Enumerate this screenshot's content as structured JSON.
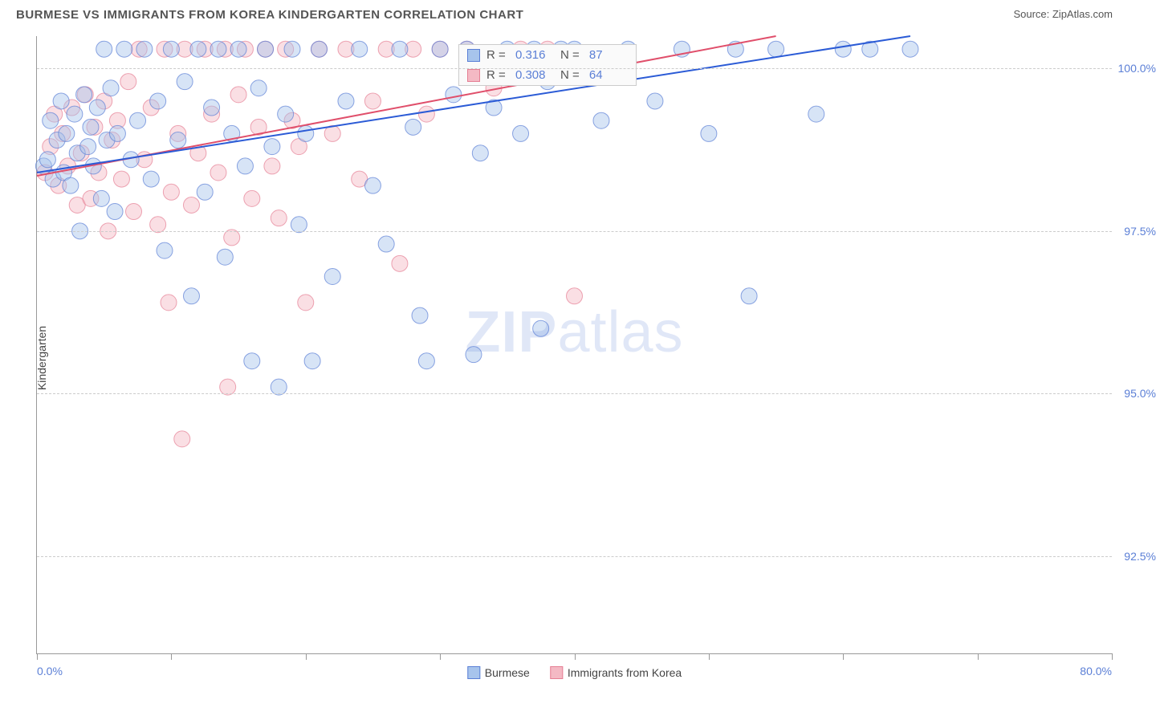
{
  "header": {
    "title": "BURMESE VS IMMIGRANTS FROM KOREA KINDERGARTEN CORRELATION CHART",
    "source": "Source: ZipAtlas.com"
  },
  "watermark": {
    "bold": "ZIP",
    "light": "atlas"
  },
  "axes": {
    "y_label": "Kindergarten",
    "x_min": 0.0,
    "x_max": 80.0,
    "y_min": 91.0,
    "y_max": 100.5,
    "y_ticks": [
      92.5,
      95.0,
      97.5,
      100.0
    ],
    "y_tick_labels": [
      "92.5%",
      "95.0%",
      "97.5%",
      "100.0%"
    ],
    "x_ticks": [
      0,
      10,
      20,
      30,
      40,
      50,
      60,
      70,
      80
    ],
    "x_left_label": "0.0%",
    "x_right_label": "80.0%"
  },
  "legend": {
    "series1": {
      "label": "Burmese",
      "fill": "#a7c4ec",
      "stroke": "#5b7fd6"
    },
    "series2": {
      "label": "Immigrants from Korea",
      "fill": "#f4b9c4",
      "stroke": "#e57f94"
    }
  },
  "stats": [
    {
      "swatch_fill": "#a7c4ec",
      "swatch_stroke": "#5b7fd6",
      "r": "0.316",
      "n": "87"
    },
    {
      "swatch_fill": "#f4b9c4",
      "swatch_stroke": "#e57f94",
      "r": "0.308",
      "n": "64"
    }
  ],
  "trend_lines": {
    "s1": {
      "x1": 0,
      "y1": 98.4,
      "x2": 65,
      "y2": 100.5,
      "color": "#2b5bd6",
      "width": 2
    },
    "s2": {
      "x1": 0,
      "y1": 98.35,
      "x2": 55,
      "y2": 100.5,
      "color": "#e04f6b",
      "width": 2
    }
  },
  "style": {
    "marker_radius": 10,
    "marker_opacity": 0.45,
    "grid_color": "#cccccc",
    "axis_color": "#999999",
    "tick_label_color": "#5b7fd6"
  },
  "series1_points": [
    [
      0.5,
      98.5
    ],
    [
      0.8,
      98.6
    ],
    [
      1.0,
      99.2
    ],
    [
      1.2,
      98.3
    ],
    [
      1.5,
      98.9
    ],
    [
      1.8,
      99.5
    ],
    [
      2.0,
      98.4
    ],
    [
      2.2,
      99.0
    ],
    [
      2.5,
      98.2
    ],
    [
      2.8,
      99.3
    ],
    [
      3.0,
      98.7
    ],
    [
      3.2,
      97.5
    ],
    [
      3.5,
      99.6
    ],
    [
      3.8,
      98.8
    ],
    [
      4.0,
      99.1
    ],
    [
      4.2,
      98.5
    ],
    [
      4.5,
      99.4
    ],
    [
      4.8,
      98.0
    ],
    [
      5.0,
      100.3
    ],
    [
      5.2,
      98.9
    ],
    [
      5.5,
      99.7
    ],
    [
      5.8,
      97.8
    ],
    [
      6.0,
      99.0
    ],
    [
      6.5,
      100.3
    ],
    [
      7.0,
      98.6
    ],
    [
      7.5,
      99.2
    ],
    [
      8.0,
      100.3
    ],
    [
      8.5,
      98.3
    ],
    [
      9.0,
      99.5
    ],
    [
      9.5,
      97.2
    ],
    [
      10.0,
      100.3
    ],
    [
      10.5,
      98.9
    ],
    [
      11.0,
      99.8
    ],
    [
      11.5,
      96.5
    ],
    [
      12.0,
      100.3
    ],
    [
      12.5,
      98.1
    ],
    [
      13.0,
      99.4
    ],
    [
      13.5,
      100.3
    ],
    [
      14.0,
      97.1
    ],
    [
      14.5,
      99.0
    ],
    [
      15.0,
      100.3
    ],
    [
      15.5,
      98.5
    ],
    [
      16.0,
      95.5
    ],
    [
      16.5,
      99.7
    ],
    [
      17.0,
      100.3
    ],
    [
      17.5,
      98.8
    ],
    [
      18.0,
      95.1
    ],
    [
      18.5,
      99.3
    ],
    [
      19.0,
      100.3
    ],
    [
      19.5,
      97.6
    ],
    [
      20.0,
      99.0
    ],
    [
      21.0,
      100.3
    ],
    [
      22.0,
      96.8
    ],
    [
      23.0,
      99.5
    ],
    [
      24.0,
      100.3
    ],
    [
      25.0,
      98.2
    ],
    [
      26.0,
      97.3
    ],
    [
      27.0,
      100.3
    ],
    [
      28.0,
      99.1
    ],
    [
      29.0,
      95.5
    ],
    [
      30.0,
      100.3
    ],
    [
      31.0,
      99.6
    ],
    [
      32.0,
      100.3
    ],
    [
      33.0,
      98.7
    ],
    [
      34.0,
      99.4
    ],
    [
      35.0,
      100.3
    ],
    [
      36.0,
      99.0
    ],
    [
      37.0,
      100.3
    ],
    [
      38.0,
      99.8
    ],
    [
      39.0,
      100.3
    ],
    [
      40.0,
      100.3
    ],
    [
      42.0,
      99.2
    ],
    [
      44.0,
      100.3
    ],
    [
      46.0,
      99.5
    ],
    [
      48.0,
      100.3
    ],
    [
      50.0,
      99.0
    ],
    [
      52.0,
      100.3
    ],
    [
      55.0,
      100.3
    ],
    [
      58.0,
      99.3
    ],
    [
      60.0,
      100.3
    ],
    [
      62.0,
      100.3
    ],
    [
      65.0,
      100.3
    ],
    [
      53.0,
      96.5
    ],
    [
      37.5,
      96.0
    ],
    [
      28.5,
      96.2
    ],
    [
      20.5,
      95.5
    ],
    [
      32.5,
      95.6
    ]
  ],
  "series2_points": [
    [
      0.6,
      98.4
    ],
    [
      1.0,
      98.8
    ],
    [
      1.3,
      99.3
    ],
    [
      1.6,
      98.2
    ],
    [
      1.9,
      99.0
    ],
    [
      2.3,
      98.5
    ],
    [
      2.6,
      99.4
    ],
    [
      3.0,
      97.9
    ],
    [
      3.3,
      98.7
    ],
    [
      3.6,
      99.6
    ],
    [
      4.0,
      98.0
    ],
    [
      4.3,
      99.1
    ],
    [
      4.6,
      98.4
    ],
    [
      5.0,
      99.5
    ],
    [
      5.3,
      97.5
    ],
    [
      5.6,
      98.9
    ],
    [
      6.0,
      99.2
    ],
    [
      6.3,
      98.3
    ],
    [
      6.8,
      99.8
    ],
    [
      7.2,
      97.8
    ],
    [
      7.6,
      100.3
    ],
    [
      8.0,
      98.6
    ],
    [
      8.5,
      99.4
    ],
    [
      9.0,
      97.6
    ],
    [
      9.5,
      100.3
    ],
    [
      10.0,
      98.1
    ],
    [
      10.5,
      99.0
    ],
    [
      11.0,
      100.3
    ],
    [
      11.5,
      97.9
    ],
    [
      12.0,
      98.7
    ],
    [
      12.5,
      100.3
    ],
    [
      13.0,
      99.3
    ],
    [
      13.5,
      98.4
    ],
    [
      14.0,
      100.3
    ],
    [
      14.5,
      97.4
    ],
    [
      15.0,
      99.6
    ],
    [
      15.5,
      100.3
    ],
    [
      16.0,
      98.0
    ],
    [
      16.5,
      99.1
    ],
    [
      17.0,
      100.3
    ],
    [
      17.5,
      98.5
    ],
    [
      18.0,
      97.7
    ],
    [
      18.5,
      100.3
    ],
    [
      19.0,
      99.2
    ],
    [
      19.5,
      98.8
    ],
    [
      20.0,
      96.4
    ],
    [
      21.0,
      100.3
    ],
    [
      22.0,
      99.0
    ],
    [
      23.0,
      100.3
    ],
    [
      24.0,
      98.3
    ],
    [
      25.0,
      99.5
    ],
    [
      26.0,
      100.3
    ],
    [
      27.0,
      97.0
    ],
    [
      28.0,
      100.3
    ],
    [
      29.0,
      99.3
    ],
    [
      30.0,
      100.3
    ],
    [
      32.0,
      100.3
    ],
    [
      34.0,
      99.7
    ],
    [
      36.0,
      100.3
    ],
    [
      38.0,
      100.3
    ],
    [
      40.0,
      96.5
    ],
    [
      9.8,
      96.4
    ],
    [
      10.8,
      94.3
    ],
    [
      14.2,
      95.1
    ]
  ]
}
